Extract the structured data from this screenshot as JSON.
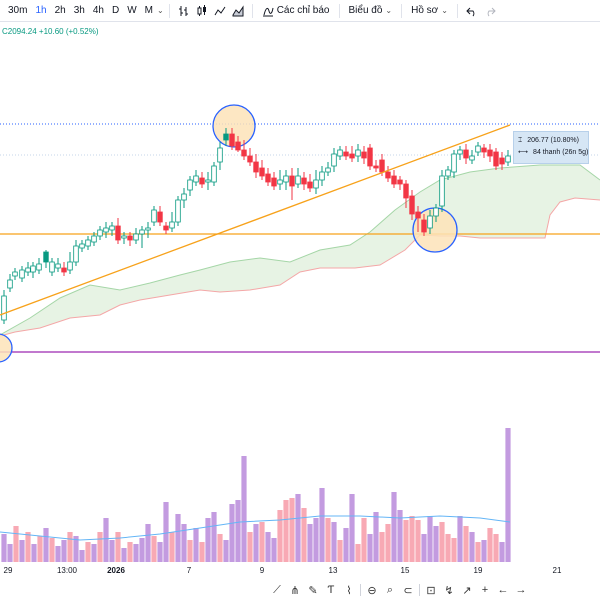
{
  "toolbar": {
    "timeframes": [
      {
        "label": "30m",
        "active": false
      },
      {
        "label": "1h",
        "active": true
      },
      {
        "label": "2h",
        "active": false
      },
      {
        "label": "3h",
        "active": false
      },
      {
        "label": "4h",
        "active": false
      },
      {
        "label": "D",
        "active": false
      },
      {
        "label": "W",
        "active": false
      },
      {
        "label": "M",
        "active": false
      }
    ],
    "indicators_label": "Các chỉ báo",
    "chart_label": "Biểu đồ",
    "profile_label": "Hồ sơ",
    "chart_icons": [
      "bar-chart-icon",
      "candles-icon",
      "line-chart-icon",
      "area-chart-icon"
    ]
  },
  "price_readout": "C2094.24 +10.60 (+0.52%)",
  "measure": {
    "change": "206.77 (10.80%)",
    "bars": "84 thanh (26n 5g)"
  },
  "x_axis": {
    "labels": [
      {
        "text": "29",
        "bold": false
      },
      {
        "text": "13:00",
        "bold": false
      },
      {
        "text": "2026",
        "bold": true
      },
      {
        "text": "7",
        "bold": false
      },
      {
        "text": "9",
        "bold": false
      },
      {
        "text": "13",
        "bold": false
      },
      {
        "text": "15",
        "bold": false
      },
      {
        "text": "19",
        "bold": false
      },
      {
        "text": "21",
        "bold": false
      }
    ]
  },
  "colors": {
    "up": "#089981",
    "down": "#f23645",
    "trendline": "#f7a21b",
    "horizontal_orange": "#f7a21b",
    "horizontal_purple": "#9c27b0",
    "dotted_blue": "#2962ff",
    "cloud_fill": "#e7f3e4",
    "cloud_upper": "#a5d6a7",
    "cloud_lower": "#f4a7a7",
    "volume_up": "#c39be0",
    "volume_down": "#f8a9b4",
    "volume_ma": "#64b5f6",
    "highlight": "#fde3b8",
    "circle": "#2962ff"
  },
  "drawing_tools": [
    "trend-line-icon",
    "pitchfork-icon",
    "brush-icon",
    "text-icon",
    "pattern-icon",
    "measure-icon",
    "zoom-icon",
    "magnet-icon",
    "lock-icon",
    "crosshair-icon",
    "arrow-cursor-icon",
    "cross-icon",
    "arrow-left-icon",
    "arrow-right-icon"
  ]
}
